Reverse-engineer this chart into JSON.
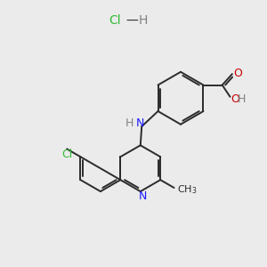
{
  "background_color": "#ebebeb",
  "bond_color": "#2b2b2b",
  "N_color": "#1a1aff",
  "O_color": "#cc0000",
  "Cl_color": "#33bb33",
  "H_color": "#808080",
  "figsize": [
    3.0,
    3.0
  ],
  "dpi": 100,
  "xlim": [
    0,
    10
  ],
  "ylim": [
    0,
    10
  ]
}
